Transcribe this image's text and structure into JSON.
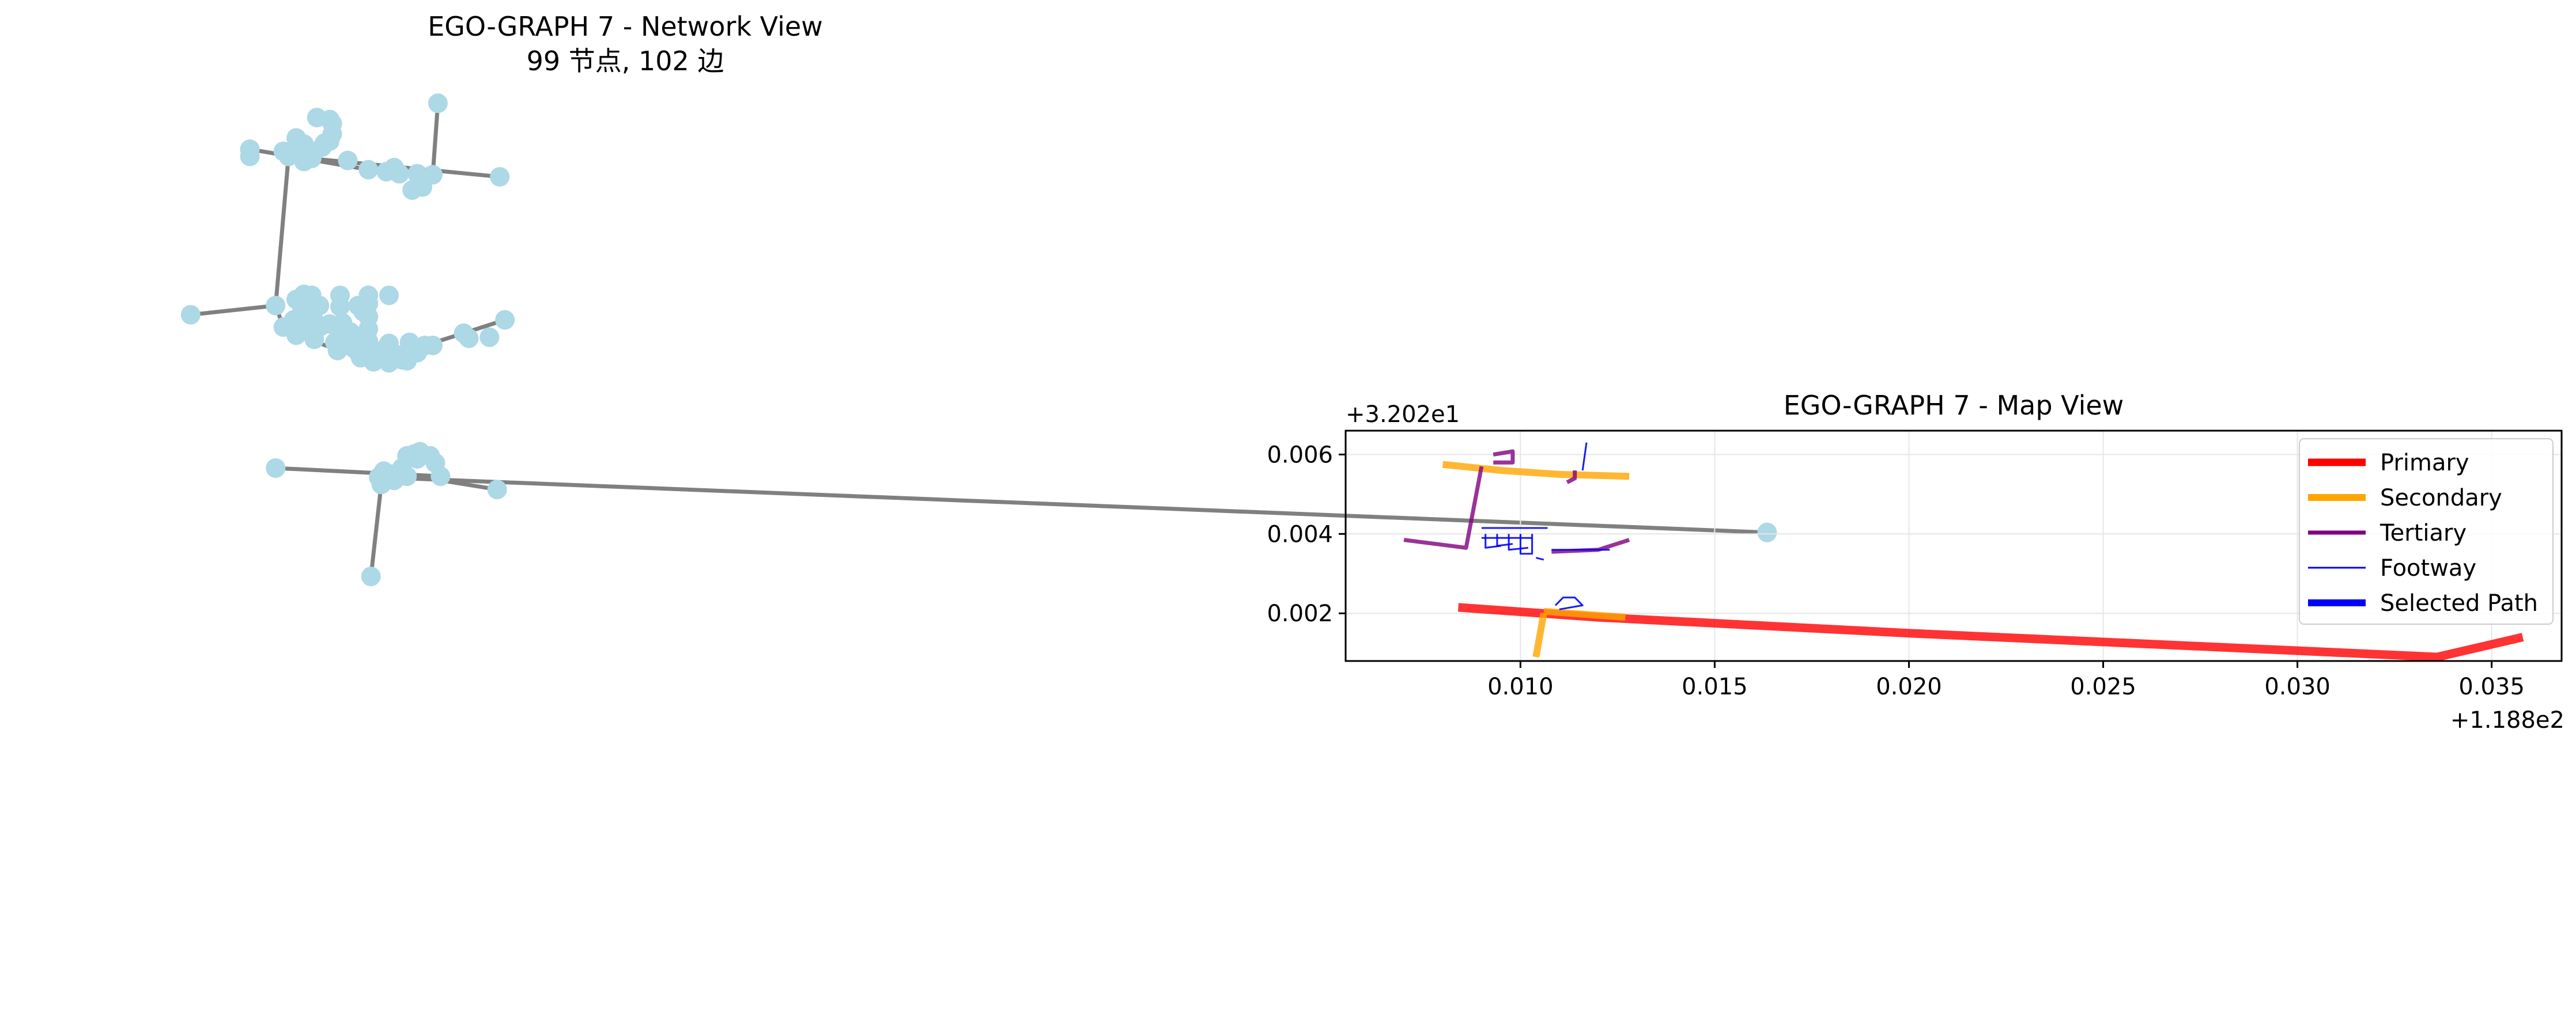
{
  "network_panel": {
    "title": "EGO-GRAPH 7 - Network View",
    "subtitle": "99 节点, 102 边"
  },
  "map_panel": {
    "title": "EGO-GRAPH 7 - Map View",
    "y_offset_label": "+3.202e1",
    "x_offset_label": "+1.188e2"
  },
  "colors": {
    "node": "#add8e6",
    "network_edge": "#808080",
    "primary": "#ff0000",
    "secondary": "#ffa500",
    "tertiary": "#800080",
    "footway": "#0000ff",
    "selected_path": "#0000ff",
    "grid": "#e6e6e6"
  },
  "chart_data": [
    {
      "type": "network",
      "title": "EGO-GRAPH 7 - Network View",
      "subtitle": "99 节点, 102 边",
      "node_count": 99,
      "edge_count": 102,
      "axes_visible": false,
      "nodes": [
        [
          0.17,
          0.101
        ],
        [
          0.123,
          0.115
        ],
        [
          0.128,
          0.117
        ],
        [
          0.129,
          0.121
        ],
        [
          0.129,
          0.131
        ],
        [
          0.115,
          0.135
        ],
        [
          0.128,
          0.138
        ],
        [
          0.118,
          0.141
        ],
        [
          0.097,
          0.146
        ],
        [
          0.125,
          0.144
        ],
        [
          0.114,
          0.148
        ],
        [
          0.118,
          0.15
        ],
        [
          0.097,
          0.153
        ],
        [
          0.112,
          0.153
        ],
        [
          0.121,
          0.155
        ],
        [
          0.118,
          0.158
        ],
        [
          0.135,
          0.157
        ],
        [
          0.143,
          0.166
        ],
        [
          0.153,
          0.164
        ],
        [
          0.155,
          0.17
        ],
        [
          0.162,
          0.17
        ],
        [
          0.168,
          0.171
        ],
        [
          0.194,
          0.173
        ],
        [
          0.164,
          0.183
        ],
        [
          0.16,
          0.186
        ],
        [
          0.118,
          0.288
        ],
        [
          0.121,
          0.289
        ],
        [
          0.132,
          0.289
        ],
        [
          0.143,
          0.289
        ],
        [
          0.151,
          0.289
        ],
        [
          0.115,
          0.293
        ],
        [
          0.107,
          0.299
        ],
        [
          0.117,
          0.299
        ],
        [
          0.124,
          0.299
        ],
        [
          0.132,
          0.3
        ],
        [
          0.139,
          0.299
        ],
        [
          0.143,
          0.297
        ],
        [
          0.141,
          0.305
        ],
        [
          0.143,
          0.31
        ],
        [
          0.074,
          0.308
        ],
        [
          0.114,
          0.313
        ],
        [
          0.122,
          0.314
        ],
        [
          0.128,
          0.317
        ],
        [
          0.133,
          0.316
        ],
        [
          0.196,
          0.313
        ],
        [
          0.11,
          0.32
        ],
        [
          0.117,
          0.321
        ],
        [
          0.124,
          0.32
        ],
        [
          0.132,
          0.322
        ],
        [
          0.136,
          0.325
        ],
        [
          0.143,
          0.322
        ],
        [
          0.18,
          0.326
        ],
        [
          0.19,
          0.33
        ],
        [
          0.182,
          0.331
        ],
        [
          0.115,
          0.328
        ],
        [
          0.122,
          0.332
        ],
        [
          0.13,
          0.335
        ],
        [
          0.134,
          0.338
        ],
        [
          0.143,
          0.334
        ],
        [
          0.151,
          0.336
        ],
        [
          0.159,
          0.335
        ],
        [
          0.165,
          0.338
        ],
        [
          0.168,
          0.338
        ],
        [
          0.131,
          0.343
        ],
        [
          0.138,
          0.342
        ],
        [
          0.16,
          0.341
        ],
        [
          0.162,
          0.345
        ],
        [
          0.14,
          0.35
        ],
        [
          0.148,
          0.351
        ],
        [
          0.156,
          0.352
        ],
        [
          0.145,
          0.354
        ],
        [
          0.151,
          0.355
        ],
        [
          0.158,
          0.353
        ],
        [
          0.161,
          0.444
        ],
        [
          0.163,
          0.442
        ],
        [
          0.167,
          0.446
        ],
        [
          0.158,
          0.446
        ],
        [
          0.162,
          0.449
        ],
        [
          0.169,
          0.453
        ],
        [
          0.107,
          0.458
        ],
        [
          0.149,
          0.461
        ],
        [
          0.156,
          0.458
        ],
        [
          0.152,
          0.464
        ],
        [
          0.158,
          0.466
        ],
        [
          0.171,
          0.466
        ],
        [
          0.147,
          0.467
        ],
        [
          0.153,
          0.47
        ],
        [
          0.148,
          0.474
        ],
        [
          0.193,
          0.479
        ],
        [
          0.686,
          0.521
        ],
        [
          0.144,
          0.564
        ],
        [
          0.11,
          0.148
        ],
        [
          0.126,
          0.14
        ],
        [
          0.15,
          0.168
        ],
        [
          0.138,
          0.33
        ],
        [
          0.146,
          0.346
        ],
        [
          0.154,
          0.347
        ],
        [
          0.15,
          0.34
        ],
        [
          0.12,
          0.307
        ]
      ],
      "edges": [
        [
          [
            0.17,
            0.101
          ],
          [
            0.168,
            0.171
          ]
        ],
        [
          [
            0.097,
            0.146
          ],
          [
            0.143,
            0.166
          ]
        ],
        [
          [
            0.112,
            0.153
          ],
          [
            0.194,
            0.173
          ]
        ],
        [
          [
            0.112,
            0.153
          ],
          [
            0.107,
            0.299
          ]
        ],
        [
          [
            0.074,
            0.308
          ],
          [
            0.107,
            0.299
          ]
        ],
        [
          [
            0.107,
            0.299
          ],
          [
            0.11,
            0.32
          ]
        ],
        [
          [
            0.196,
            0.313
          ],
          [
            0.18,
            0.326
          ]
        ],
        [
          [
            0.18,
            0.326
          ],
          [
            0.165,
            0.338
          ]
        ],
        [
          [
            0.118,
            0.288
          ],
          [
            0.122,
            0.332
          ]
        ],
        [
          [
            0.115,
            0.328
          ],
          [
            0.14,
            0.35
          ]
        ],
        [
          [
            0.107,
            0.458
          ],
          [
            0.171,
            0.466
          ]
        ],
        [
          [
            0.149,
            0.461
          ],
          [
            0.193,
            0.479
          ]
        ],
        [
          [
            0.147,
            0.467
          ],
          [
            0.686,
            0.521
          ]
        ],
        [
          [
            0.148,
            0.474
          ],
          [
            0.144,
            0.564
          ]
        ],
        [
          [
            0.161,
            0.444
          ],
          [
            0.148,
            0.474
          ]
        ]
      ]
    },
    {
      "type": "line",
      "title": "EGO-GRAPH 7 - Map View",
      "x_offset": "+1.188e2",
      "y_offset": "+3.202e1",
      "xlim": [
        0.0055,
        0.0368
      ],
      "ylim": [
        0.0008,
        0.0066
      ],
      "x_ticks": [
        "0.010",
        "0.015",
        "0.020",
        "0.025",
        "0.030",
        "0.035"
      ],
      "y_ticks": [
        "0.002",
        "0.004",
        "0.006"
      ],
      "grid": true,
      "legend_position": "top-right",
      "series": [
        {
          "name": "Primary",
          "color": "#ff0000",
          "segments": [
            [
              [
                0.0084,
                0.00215
              ],
              [
                0.012,
                0.0019
              ],
              [
                0.02,
                0.0015
              ],
              [
                0.0336,
                0.0009
              ],
              [
                0.0358,
                0.0014
              ]
            ]
          ]
        },
        {
          "name": "Secondary",
          "color": "#ffa500",
          "segments": [
            [
              [
                0.008,
                0.00575
              ],
              [
                0.0095,
                0.0056
              ],
              [
                0.011,
                0.0055
              ],
              [
                0.0128,
                0.00545
              ]
            ],
            [
              [
                0.0104,
                0.0009
              ],
              [
                0.0106,
                0.002
              ]
            ],
            [
              [
                0.0106,
                0.00205
              ],
              [
                0.0127,
                0.0019
              ]
            ]
          ]
        },
        {
          "name": "Tertiary",
          "color": "#800080",
          "segments": [
            [
              [
                0.007,
                0.00385
              ],
              [
                0.0086,
                0.00365
              ],
              [
                0.009,
                0.0057
              ]
            ],
            [
              [
                0.0108,
                0.00355
              ],
              [
                0.012,
                0.0036
              ],
              [
                0.0128,
                0.00385
              ]
            ],
            [
              [
                0.0093,
                0.006
              ],
              [
                0.0098,
                0.00608
              ],
              [
                0.0098,
                0.0058
              ],
              [
                0.0093,
                0.0058
              ]
            ],
            [
              [
                0.0112,
                0.0053
              ],
              [
                0.0114,
                0.0054
              ],
              [
                0.0114,
                0.0056
              ]
            ]
          ]
        },
        {
          "name": "Footway",
          "color": "#0000ff",
          "segments": [
            [
              [
                0.0116,
                0.0056
              ],
              [
                0.0117,
                0.0063
              ]
            ],
            [
              [
                0.009,
                0.00415
              ],
              [
                0.0107,
                0.00415
              ]
            ],
            [
              [
                0.0091,
                0.004
              ],
              [
                0.0091,
                0.00365
              ],
              [
                0.0095,
                0.0037
              ]
            ],
            [
              [
                0.0094,
                0.004
              ],
              [
                0.0094,
                0.0037
              ],
              [
                0.0098,
                0.00375
              ]
            ],
            [
              [
                0.0097,
                0.004
              ],
              [
                0.0097,
                0.0036
              ],
              [
                0.0102,
                0.00365
              ]
            ],
            [
              [
                0.01,
                0.004
              ],
              [
                0.01,
                0.0035
              ],
              [
                0.0103,
                0.0035
              ],
              [
                0.0103,
                0.004
              ]
            ],
            [
              [
                0.009,
                0.0039
              ],
              [
                0.0103,
                0.0039
              ]
            ],
            [
              [
                0.0104,
                0.0034
              ],
              [
                0.0106,
                0.00335
              ]
            ],
            [
              [
                0.0108,
                0.0036
              ],
              [
                0.0123,
                0.0036
              ]
            ],
            [
              [
                0.0109,
                0.0022
              ],
              [
                0.0111,
                0.0024
              ],
              [
                0.0114,
                0.0024
              ],
              [
                0.0116,
                0.0022
              ],
              [
                0.011,
                0.0021
              ]
            ]
          ]
        },
        {
          "name": "Selected Path",
          "color": "#0000ff",
          "segments": []
        }
      ]
    }
  ]
}
